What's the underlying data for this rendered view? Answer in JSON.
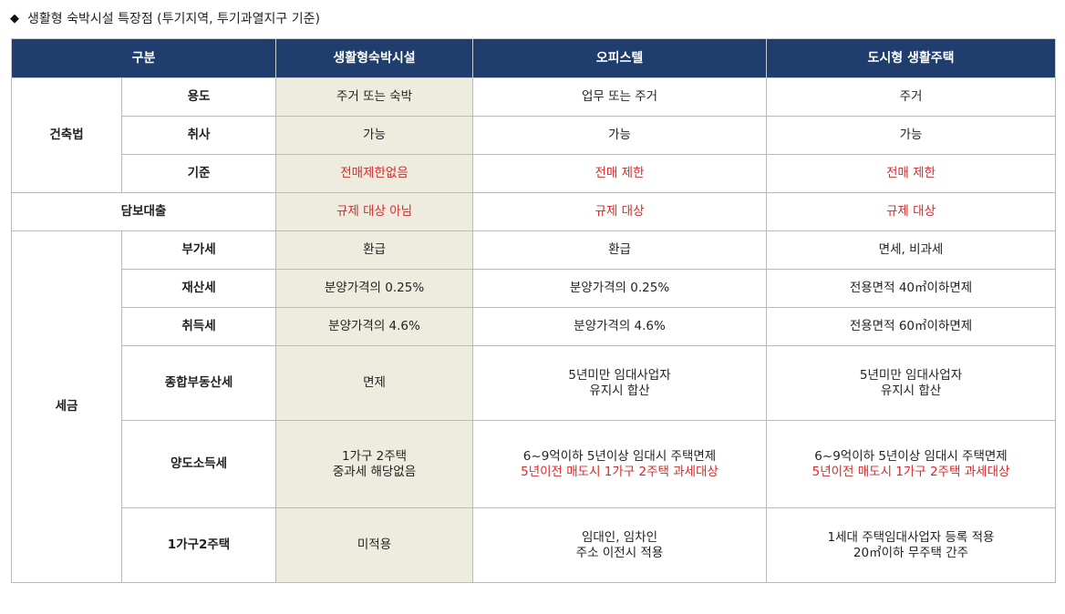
{
  "title": {
    "bullet": "◆",
    "text": "생활형 숙박시설 특장점 (투기지역, 투기과열지구 기준)"
  },
  "colors": {
    "header_bg": "#1f3d6d",
    "highlight_col": "#eeebdf",
    "emphasis_red": "#d42a2a"
  },
  "table": {
    "headers": [
      "구분",
      "생활형숙박시설",
      "오피스텔",
      "도시형 생활주택"
    ],
    "groups": {
      "building_law": "건축법",
      "collateral_loan": "담보대출",
      "tax": "세금"
    },
    "rows": {
      "use": {
        "label": "용도",
        "lodging": "주거 또는 숙박",
        "officetel": "업무 또는 주거",
        "urban": "주거"
      },
      "cooking": {
        "label": "취사",
        "lodging": "가능",
        "officetel": "가능",
        "urban": "가능"
      },
      "standard": {
        "label": "기준",
        "lodging": "전매제한없음",
        "officetel": "전매 제한",
        "urban": "전매 제한"
      },
      "loan": {
        "lodging": "규제 대상 아님",
        "officetel": "규제 대상",
        "urban": "규제 대상"
      },
      "vat": {
        "label": "부가세",
        "lodging": "환급",
        "officetel": "환급",
        "urban": "면세, 비과세"
      },
      "property_tax": {
        "label": "재산세",
        "lodging": "분양가격의 0.25%",
        "officetel": "분양가격의 0.25%",
        "urban": "전용면적 40㎡이하면제"
      },
      "acquisition_tax": {
        "label": "취득세",
        "lodging": "분양가격의 4.6%",
        "officetel": "분양가격의 4.6%",
        "urban": "전용면적 60㎡이하면제"
      },
      "comprehensive_tax": {
        "label": "종합부동산세",
        "lodging": "면제",
        "officetel": [
          "5년미만 임대사업자",
          "유지시 합산"
        ],
        "urban": [
          "5년미만 임대사업자",
          "유지시 합산"
        ]
      },
      "capital_gains_tax": {
        "label": "양도소득세",
        "lodging": [
          "1가구 2주택",
          "중과세 해당없음"
        ],
        "officetel": [
          "6~9억이하 5년이상 임대시 주택면제",
          "5년이전 매도시 1가구 2주택 과세대상"
        ],
        "urban": [
          "6~9억이하 5년이상 임대시 주택면제",
          "5년이전 매도시 1가구 2주택 과세대상"
        ]
      },
      "two_homes": {
        "label": "1가구2주택",
        "lodging": "미적용",
        "officetel": [
          "임대인, 임차인",
          "주소 이전시 적용"
        ],
        "urban": [
          "1세대 주택임대사업자 등록 적용",
          "20㎡이하 무주택 간주"
        ]
      }
    }
  }
}
